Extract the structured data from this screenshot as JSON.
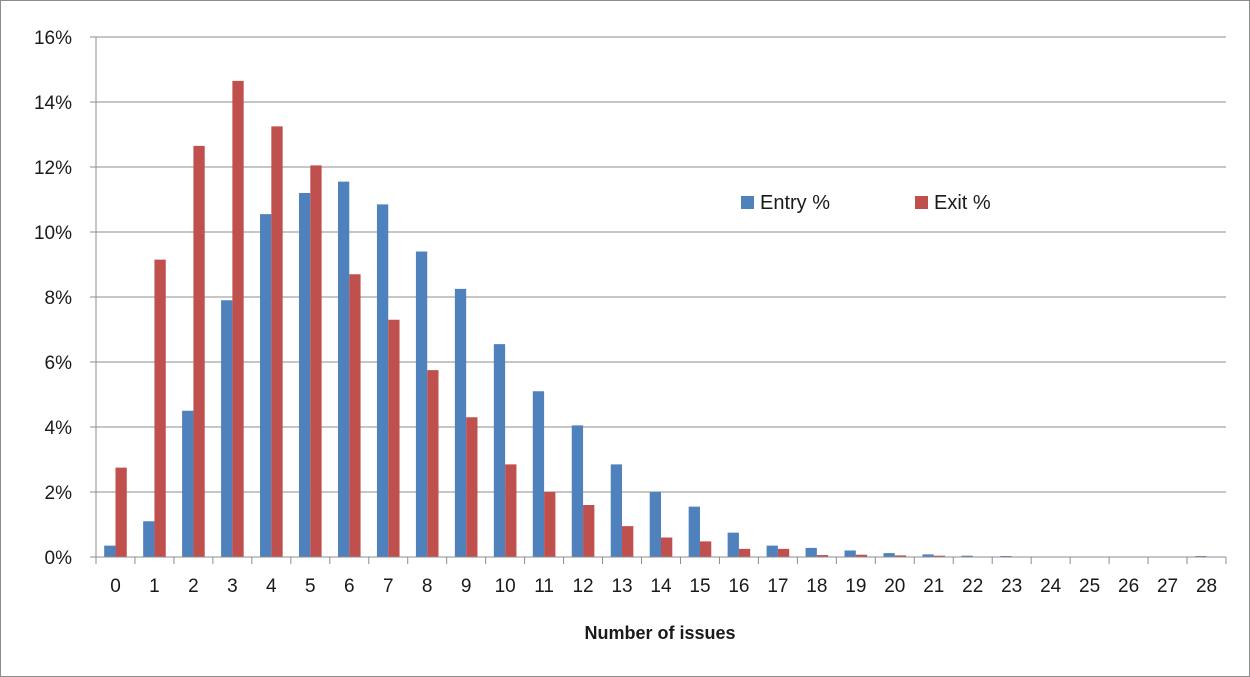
{
  "chart_data": {
    "type": "bar",
    "title": "",
    "xlabel": "Number of issues",
    "ylabel": "",
    "ylim": [
      0,
      16
    ],
    "y_ticks": [
      "0%",
      "2%",
      "4%",
      "6%",
      "8%",
      "10%",
      "12%",
      "14%",
      "16%"
    ],
    "y_tick_values": [
      0,
      2,
      4,
      6,
      8,
      10,
      12,
      14,
      16
    ],
    "y_unit": "%",
    "grid": true,
    "legend_position": "upper-right-inside",
    "categories": [
      "0",
      "1",
      "2",
      "3",
      "4",
      "5",
      "6",
      "7",
      "8",
      "9",
      "10",
      "11",
      "12",
      "13",
      "14",
      "15",
      "16",
      "17",
      "18",
      "19",
      "20",
      "21",
      "22",
      "23",
      "24",
      "25",
      "26",
      "27",
      "28"
    ],
    "series": [
      {
        "name": "Entry %",
        "color": "#4f81bd",
        "values": [
          0.35,
          1.1,
          4.5,
          7.9,
          10.55,
          11.2,
          11.55,
          10.85,
          9.4,
          8.25,
          6.55,
          5.1,
          4.05,
          2.85,
          2.0,
          1.55,
          0.75,
          0.35,
          0.28,
          0.2,
          0.12,
          0.08,
          0.04,
          0.03,
          0.0,
          0.0,
          0.0,
          0.0,
          0.03
        ]
      },
      {
        "name": "Exit %",
        "color": "#c0504d",
        "values": [
          2.75,
          9.15,
          12.65,
          14.65,
          13.25,
          12.05,
          8.7,
          7.3,
          5.75,
          4.3,
          2.85,
          2.0,
          1.6,
          0.95,
          0.6,
          0.48,
          0.25,
          0.25,
          0.06,
          0.07,
          0.05,
          0.04,
          0.0,
          0.0,
          0.0,
          0.0,
          0.0,
          0.0,
          0.0
        ]
      }
    ]
  }
}
